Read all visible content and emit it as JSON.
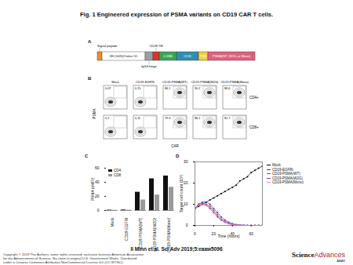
{
  "title": "Fig. 1 Engineered expression of PSMA variants on CD19 CAR T cells.",
  "panels": {
    "A": {
      "panel_label": "A",
      "segments": [
        {
          "label": "Signal peptide",
          "color": "#f28c28"
        },
        {
          "label": "VH (G4S)3 linker VL",
          "color": "#ffffff"
        },
        {
          "label": "IgG4 hinge",
          "color": "#9e9e9e"
        },
        {
          "label": "CD28 TM",
          "color": "#d9352b"
        },
        {
          "label": "4-1BB",
          "color": "#3aa655"
        },
        {
          "label": "CD3ζ",
          "color": "#2f8fb0"
        },
        {
          "label": "P2A",
          "color": "#f2d03b"
        },
        {
          "label": "PSMA(WT, W2G, or Mono)",
          "color": "#e0607e"
        }
      ]
    },
    "B": {
      "panel_label": "B",
      "columns": [
        "Mock",
        "CD19-EGFRt",
        "CD19-PSMA(WT)",
        "CD19-PSMA(W2G)",
        "CD19-PSMA(Mono)"
      ],
      "rows": [
        {
          "label": "CD4+",
          "percentages": [
            0.07,
            0.15,
            86.1,
            90.2,
            86.6
          ]
        },
        {
          "label": "CD8+",
          "percentages": [
            0.2,
            0.11,
            79.3,
            86.1,
            81.7
          ]
        }
      ],
      "y_label": "PSMA",
      "x_label": "CAR"
    }
  },
  "chart_data": [
    {
      "panel_label": "C",
      "type": "bar",
      "categories": [
        "Mock",
        "CD19-EGFRt",
        "CD19-PSMA(WT)",
        "CD19-PSMA(W2G)",
        "CD19-PSMA(Mono)"
      ],
      "series": [
        {
          "name": "CD4",
          "color": "#111111",
          "values": [
            0.6,
            0.8,
            26,
            45,
            49
          ]
        },
        {
          "name": "CD8",
          "color": "#9a9a9a",
          "values": [
            0.4,
            0.5,
            15,
            22,
            33
          ]
        }
      ],
      "y_label": "PSMA (sMFI)",
      "ylim": [
        0,
        60
      ],
      "yticks": [
        0,
        20,
        40,
        60
      ],
      "legend": "top-left"
    },
    {
      "panel_label": "D",
      "type": "line",
      "x": [
        0,
        4,
        8,
        12,
        16,
        20,
        24,
        28,
        32,
        36,
        40,
        44,
        48,
        52,
        56,
        60,
        64,
        68,
        72
      ],
      "series": [
        {
          "name": "Mock",
          "color": "#000000",
          "values": [
            8,
            9,
            10,
            11,
            12,
            13,
            14,
            15,
            16,
            17,
            18,
            19,
            21,
            22,
            23,
            25,
            26,
            27,
            28
          ]
        },
        {
          "name": "CD19-EGFRt",
          "color": "#1f3fbf",
          "values": [
            8,
            10,
            11,
            11,
            10,
            8,
            6,
            4,
            2.5,
            1.5,
            0.8,
            0.4,
            0.2,
            0.1,
            0,
            0,
            0,
            0,
            0
          ]
        },
        {
          "name": "CD19-PSMA(WT)",
          "color": "#c0392b",
          "values": [
            8,
            10,
            10.5,
            10,
            9,
            7,
            5,
            3,
            2,
            1,
            0.5,
            0.2,
            0.1,
            0,
            0,
            0,
            0,
            0,
            0
          ]
        },
        {
          "name": "CD19-PSMA(W2G)",
          "color": "#7b3fa0",
          "values": [
            8,
            9.5,
            10,
            9.5,
            8,
            6,
            4,
            2.5,
            1.5,
            0.8,
            0.3,
            0.1,
            0,
            0,
            0,
            0,
            0,
            0,
            0
          ]
        },
        {
          "name": "CD19-PSMA(Mono)",
          "color": "#e377c2",
          "values": [
            8,
            9.5,
            10,
            9.5,
            8.5,
            6.5,
            4.5,
            3,
            1.8,
            1,
            0.5,
            0.2,
            0.1,
            0,
            0,
            0,
            0,
            0,
            0
          ]
        }
      ],
      "x_label": "Time (hours)",
      "y_label": "Target cell count (10³)",
      "xlim": [
        0,
        72
      ],
      "xticks": [
        0,
        20,
        40,
        60
      ],
      "ylim": [
        0,
        30
      ],
      "yticks": [
        0,
        10,
        20,
        30
      ],
      "legend": "right",
      "marker": "circle"
    }
  ],
  "citation": "Il Minn et al. Sci Adv 2019;5:eaaw5096",
  "copyright": [
    "Copyright © 2019 The Authors, some rights reserved; exclusive licensee American Association",
    "for the Advancement of Science. No claim to original U.S. Government Works. Distributed",
    "under a Creative Commons Attribution NonCommercial License 4.0 (CC BY-NC)."
  ],
  "logo": {
    "name_parts": [
      "Science",
      "Advances"
    ],
    "sub": "AAAS"
  }
}
